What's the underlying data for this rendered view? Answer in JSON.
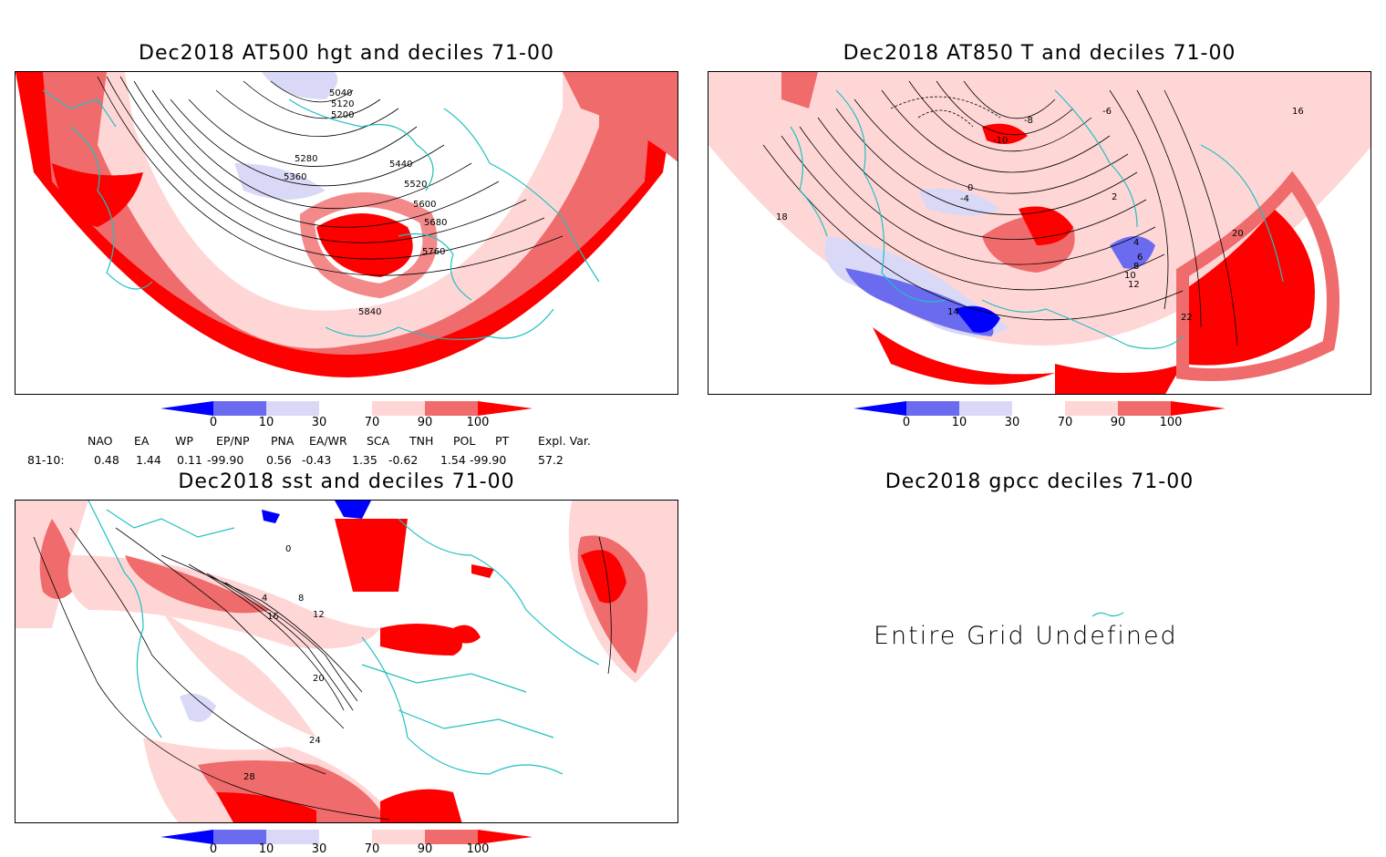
{
  "panels": {
    "hgt500": {
      "title": "Dec2018 AT500 hgt and deciles 71-00",
      "contour_labels": [
        "5040",
        "5120",
        "5200",
        "5280",
        "5360",
        "5440",
        "5520",
        "5600",
        "5680",
        "5760",
        "5840"
      ]
    },
    "t850": {
      "title": "Dec2018 AT850 T and deciles 71-00",
      "contour_labels": [
        "-10",
        "-8",
        "-6",
        "-4",
        "0",
        "2",
        "4",
        "6",
        "8",
        "10",
        "12",
        "14",
        "16",
        "18",
        "20",
        "22"
      ]
    },
    "sst": {
      "title": "Dec2018 sst and deciles 71-00",
      "contour_labels": [
        "0",
        "4",
        "8",
        "12",
        "16",
        "20",
        "24",
        "28"
      ]
    },
    "gpcc": {
      "title": "Dec2018 gpcc deciles 71-00",
      "message": "Entire Grid Undefined"
    }
  },
  "colorbar": {
    "labels": [
      "0",
      "10",
      "30",
      "70",
      "90",
      "100"
    ],
    "colors": [
      "#0000ff",
      "#6b6bf0",
      "#d9d9f7",
      "#ffffff",
      "#ffd6d6",
      "#f06b6b",
      "#ff0000"
    ]
  },
  "indices": {
    "row_label": "81-10:",
    "headers": [
      "NAO",
      "EA",
      "WP",
      "EP/NP",
      "PNA",
      "EA/WR",
      "SCA",
      "TNH",
      "POL",
      "PT",
      "Expl. Var."
    ],
    "values": [
      "0.48",
      "1.44",
      "0.11",
      "-99.90",
      "0.56",
      "-0.43",
      "1.35",
      "-0.62",
      "1.54",
      "-99.90",
      "57.2"
    ]
  }
}
